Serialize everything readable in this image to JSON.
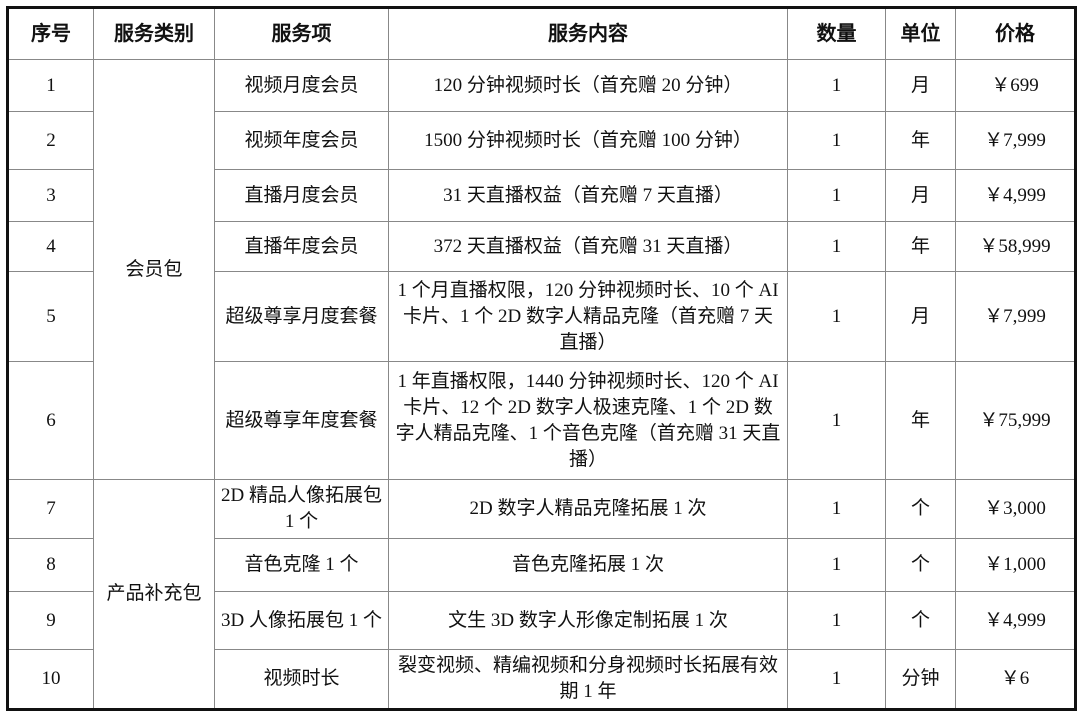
{
  "headers": [
    "序号",
    "服务类别",
    "服务项",
    "服务内容",
    "数量",
    "单位",
    "价格"
  ],
  "categories": [
    "会员包",
    "产品补充包"
  ],
  "rows": [
    {
      "no": "1",
      "item": "视频月度会员",
      "content": "120 分钟视频时长（首充赠 20 分钟）",
      "qty": "1",
      "unit": "月",
      "price": "￥699"
    },
    {
      "no": "2",
      "item": "视频年度会员",
      "content": "1500 分钟视频时长（首充赠 100 分钟）",
      "qty": "1",
      "unit": "年",
      "price": "￥7,999"
    },
    {
      "no": "3",
      "item": "直播月度会员",
      "content": "31 天直播权益（首充赠 7 天直播）",
      "qty": "1",
      "unit": "月",
      "price": "￥4,999"
    },
    {
      "no": "4",
      "item": "直播年度会员",
      "content": "372 天直播权益（首充赠 31 天直播）",
      "qty": "1",
      "unit": "年",
      "price": "￥58,999"
    },
    {
      "no": "5",
      "item": "超级尊享月度套餐",
      "content": "1 个月直播权限，120 分钟视频时长、10 个 AI 卡片、1 个 2D 数字人精品克隆（首充赠 7 天直播）",
      "qty": "1",
      "unit": "月",
      "price": "￥7,999"
    },
    {
      "no": "6",
      "item": "超级尊享年度套餐",
      "content": "1 年直播权限，1440 分钟视频时长、120 个 AI 卡片、12 个 2D 数字人极速克隆、1 个 2D 数字人精品克隆、1 个音色克隆（首充赠 31 天直播）",
      "qty": "1",
      "unit": "年",
      "price": "￥75,999"
    },
    {
      "no": "7",
      "item": "2D 精品人像拓展包 1 个",
      "content": "2D 数字人精品克隆拓展 1 次",
      "qty": "1",
      "unit": "个",
      "price": "￥3,000"
    },
    {
      "no": "8",
      "item": "音色克隆 1 个",
      "content": "音色克隆拓展 1 次",
      "qty": "1",
      "unit": "个",
      "price": "￥1,000"
    },
    {
      "no": "9",
      "item": "3D 人像拓展包 1 个",
      "content": "文生 3D 数字人形像定制拓展 1 次",
      "qty": "1",
      "unit": "个",
      "price": "￥4,999"
    },
    {
      "no": "10",
      "item": "视频时长",
      "content": "裂变视频、精编视频和分身视频时长拓展有效期 1 年",
      "qty": "1",
      "unit": "分钟",
      "price": "￥6"
    }
  ]
}
